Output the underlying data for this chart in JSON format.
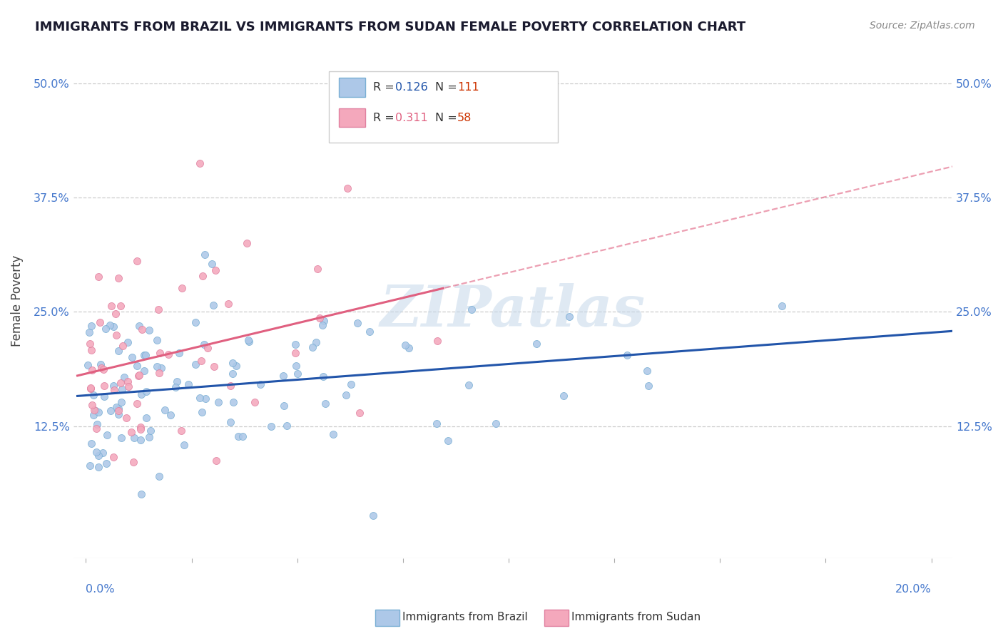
{
  "title": "IMMIGRANTS FROM BRAZIL VS IMMIGRANTS FROM SUDAN FEMALE POVERTY CORRELATION CHART",
  "source": "Source: ZipAtlas.com",
  "ylabel": "Female Poverty",
  "ytick_values": [
    0.125,
    0.25,
    0.375,
    0.5
  ],
  "ytick_labels": [
    "12.5%",
    "25.0%",
    "37.5%",
    "50.0%"
  ],
  "xlim": [
    0.0,
    0.2
  ],
  "ylim": [
    -0.02,
    0.545
  ],
  "brazil_color": "#adc8e8",
  "brazil_edge_color": "#7aafd4",
  "sudan_color": "#f4a8bc",
  "sudan_edge_color": "#e080a0",
  "brazil_line_color": "#2255aa",
  "sudan_line_color": "#e06080",
  "axis_label_color": "#4477cc",
  "grid_color": "#cccccc",
  "background_color": "#ffffff",
  "watermark": "ZIPatlas",
  "brazil_r": 0.126,
  "brazil_n": 111,
  "sudan_r": 0.311,
  "sudan_n": 58
}
